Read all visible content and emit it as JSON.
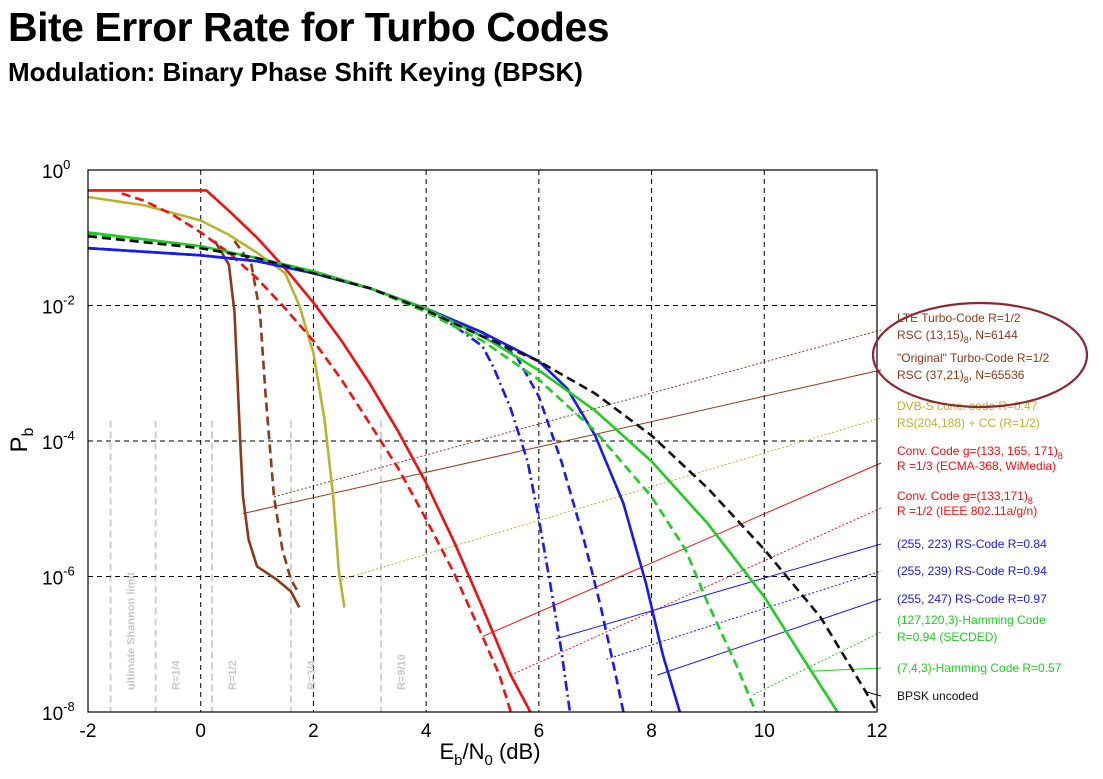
{
  "header": {
    "title": "Bite Error Rate for Turbo Codes",
    "subtitle": "Modulation: Binary Phase Shift Keying (BPSK)"
  },
  "chart_data": {
    "type": "line",
    "xlabel": "Eb/N0 (dB)",
    "ylabel": "Pb",
    "xlim": [
      -2,
      12
    ],
    "ylim": [
      1e-08,
      1
    ],
    "yscale": "log",
    "grid": true,
    "x_ticks": [
      "-2",
      "0",
      "2",
      "4",
      "6",
      "8",
      "10",
      "12"
    ],
    "y_ticks": [
      {
        "base": "10",
        "exp": "0",
        "value": 1
      },
      {
        "base": "10",
        "exp": "-2",
        "value": 0.01
      },
      {
        "base": "10",
        "exp": "-4",
        "value": 0.0001
      },
      {
        "base": "10",
        "exp": "-6",
        "value": 1e-06
      },
      {
        "base": "10",
        "exp": "-8",
        "value": 1e-08
      }
    ],
    "rate_limits": [
      {
        "label": "ultimate Shannon limit",
        "x": -1.6
      },
      {
        "label": "R=1/4",
        "x": -0.8
      },
      {
        "label": "R=1/2",
        "x": 0.2
      },
      {
        "label": "R=3/4",
        "x": 1.6
      },
      {
        "label": "R=9/10",
        "x": 3.2
      }
    ],
    "series": [
      {
        "name": "LTE Turbo-Code R=1/2 RSC (13,15)8, N=6144",
        "color": "#8b3a1a",
        "dash": "dashed",
        "points": [
          [
            0.6,
            0.09
          ],
          [
            0.9,
            0.04
          ],
          [
            1.05,
            0.008
          ],
          [
            1.15,
            0.0005
          ],
          [
            1.3,
            1.5e-05
          ],
          [
            1.45,
            2.5e-06
          ],
          [
            1.6,
            9e-07
          ],
          [
            1.75,
            5.5e-07
          ]
        ]
      },
      {
        "name": "\"Original\" Turbo-Code R=1/2 RSC (37,21)8, N=65536",
        "color": "#8b3a1a",
        "dash": "solid",
        "points": [
          [
            0.25,
            0.09
          ],
          [
            0.5,
            0.04
          ],
          [
            0.6,
            0.008
          ],
          [
            0.7,
            0.0001
          ],
          [
            0.75,
            1.5e-05
          ],
          [
            0.85,
            3.5e-06
          ],
          [
            1.0,
            1.4e-06
          ],
          [
            1.35,
            9e-07
          ],
          [
            1.6,
            6e-07
          ],
          [
            1.75,
            3.5e-07
          ]
        ]
      },
      {
        "name": "DVB-S conc. code R=0.47 RS(204,188) + CC (R=1/2)",
        "color": "#b9b430",
        "dash": "solid",
        "points": [
          [
            -2,
            0.4
          ],
          [
            -1,
            0.3
          ],
          [
            0,
            0.18
          ],
          [
            0.5,
            0.11
          ],
          [
            1,
            0.06
          ],
          [
            1.5,
            0.03
          ],
          [
            1.75,
            0.01
          ],
          [
            2,
            0.002
          ],
          [
            2.2,
            0.0002
          ],
          [
            2.35,
            1.5e-05
          ],
          [
            2.45,
            1.2e-06
          ],
          [
            2.55,
            3.5e-07
          ]
        ]
      },
      {
        "name": "Conv. Code g=(133, 165, 171)8 R =1/3 (ECMA-368, WiMedia)",
        "color": "#ee1111",
        "dash": "dashed",
        "points": [
          [
            -1.4,
            0.45
          ],
          [
            -1,
            0.35
          ],
          [
            -0.5,
            0.22
          ],
          [
            0,
            0.12
          ],
          [
            0.5,
            0.06
          ],
          [
            1,
            0.025
          ],
          [
            1.5,
            0.009
          ],
          [
            2,
            0.003
          ],
          [
            2.5,
            0.0008
          ],
          [
            3,
            0.00018
          ],
          [
            3.5,
            4e-05
          ],
          [
            4,
            7e-06
          ],
          [
            4.5,
            1.1e-06
          ],
          [
            5,
            1.3e-07
          ],
          [
            5.3,
            3.5e-08
          ],
          [
            5.5,
            1e-08
          ]
        ]
      },
      {
        "name": "Conv. Code g=(133,171)8 R =1/2 (IEEE 802.11a/g/n)",
        "color": "#ee1111",
        "dash": "solid",
        "points": [
          [
            -2,
            0.5
          ],
          [
            0.1,
            0.5
          ],
          [
            0.5,
            0.25
          ],
          [
            1,
            0.1
          ],
          [
            1.5,
            0.035
          ],
          [
            2,
            0.011
          ],
          [
            2.5,
            0.003
          ],
          [
            3,
            0.0007
          ],
          [
            3.5,
            0.00014
          ],
          [
            4,
            2.4e-05
          ],
          [
            4.5,
            3.2e-06
          ],
          [
            5,
            3.5e-07
          ],
          [
            5.5,
            3.5e-08
          ],
          [
            5.85,
            1e-08
          ]
        ]
      },
      {
        "name": "(255, 223) RS-Code R=0.84",
        "color": "#1a1aee",
        "dash": "dashdot",
        "points": [
          [
            -2,
            0.07
          ],
          [
            0,
            0.055
          ],
          [
            1,
            0.045
          ],
          [
            2,
            0.03
          ],
          [
            3,
            0.018
          ],
          [
            4,
            0.009
          ],
          [
            4.5,
            0.005
          ],
          [
            5,
            0.0025
          ],
          [
            5.2,
            0.0012
          ],
          [
            5.5,
            0.0003
          ],
          [
            5.8,
            5e-05
          ],
          [
            6,
            7e-06
          ],
          [
            6.2,
            8e-07
          ],
          [
            6.4,
            8e-08
          ],
          [
            6.55,
            1e-08
          ]
        ]
      },
      {
        "name": "(255, 239) RS-Code R=0.94",
        "color": "#1a1aee",
        "dash": "dashed",
        "points": [
          [
            -2,
            0.07
          ],
          [
            0,
            0.055
          ],
          [
            1,
            0.045
          ],
          [
            2,
            0.03
          ],
          [
            3,
            0.018
          ],
          [
            4,
            0.009
          ],
          [
            5,
            0.004
          ],
          [
            5.6,
            0.0018
          ],
          [
            6,
            0.00045
          ],
          [
            6.4,
            5e-05
          ],
          [
            6.8,
            3.5e-06
          ],
          [
            7.1,
            3.5e-07
          ],
          [
            7.35,
            4e-08
          ],
          [
            7.5,
            1e-08
          ]
        ]
      },
      {
        "name": "(255, 247) RS-Code R=0.97",
        "color": "#1a1aee",
        "dash": "solid",
        "points": [
          [
            -2,
            0.07
          ],
          [
            0,
            0.055
          ],
          [
            1,
            0.045
          ],
          [
            2,
            0.03
          ],
          [
            3,
            0.018
          ],
          [
            4,
            0.009
          ],
          [
            5,
            0.004
          ],
          [
            6,
            0.0015
          ],
          [
            6.5,
            0.0006
          ],
          [
            7,
            0.00012
          ],
          [
            7.5,
            1.2e-05
          ],
          [
            7.9,
            8e-07
          ],
          [
            8.2,
            7e-08
          ],
          [
            8.5,
            1e-08
          ]
        ]
      },
      {
        "name": "(127,120,3)-Hamming Code R=0.94 (SECDED)",
        "color": "#22cc22",
        "dash": "dashed",
        "points": [
          [
            -2,
            0.11
          ],
          [
            0,
            0.07
          ],
          [
            1,
            0.05
          ],
          [
            2,
            0.032
          ],
          [
            3,
            0.018
          ],
          [
            4,
            0.008
          ],
          [
            5,
            0.003
          ],
          [
            6,
            0.0008
          ],
          [
            7,
            0.00014
          ],
          [
            8,
            1.5e-05
          ],
          [
            8.6,
            2.5e-06
          ],
          [
            9,
            4e-07
          ],
          [
            9.5,
            5e-08
          ],
          [
            9.85,
            1e-08
          ]
        ]
      },
      {
        "name": "(7,4,3)-Hamming Code R=0.57",
        "color": "#22cc22",
        "dash": "solid",
        "points": [
          [
            -2,
            0.12
          ],
          [
            0,
            0.075
          ],
          [
            1,
            0.05
          ],
          [
            2,
            0.032
          ],
          [
            3,
            0.018
          ],
          [
            4,
            0.009
          ],
          [
            5,
            0.0035
          ],
          [
            6,
            0.0011
          ],
          [
            7,
            0.00028
          ],
          [
            8,
            5e-05
          ],
          [
            9,
            6e-06
          ],
          [
            10,
            5e-07
          ],
          [
            10.7,
            6e-08
          ],
          [
            11.3,
            1e-08
          ]
        ]
      },
      {
        "name": "BPSK uncoded",
        "color": "#111111",
        "dash": "dashed",
        "points": [
          [
            -2,
            0.105
          ],
          [
            0,
            0.07
          ],
          [
            1,
            0.05
          ],
          [
            2,
            0.03
          ],
          [
            3,
            0.018
          ],
          [
            4,
            0.0085
          ],
          [
            5,
            0.0035
          ],
          [
            6,
            0.0015
          ],
          [
            7,
            0.0005
          ],
          [
            8,
            0.00012
          ],
          [
            9,
            2e-05
          ],
          [
            10,
            2.5e-06
          ],
          [
            11,
            2.5e-07
          ],
          [
            11.8,
            2e-08
          ],
          [
            12,
            1e-08
          ]
        ]
      }
    ],
    "legend": [
      {
        "line1": "LTE Turbo-Code R=1/2",
        "line2": "RSC (13,15)",
        "sub": "8",
        "tail": ", N=6144",
        "color": "#8b3a1a",
        "target": [
          1.3,
          1.5e-05
        ]
      },
      {
        "line1": "\"Original\" Turbo-Code R=1/2",
        "line2": "RSC (37,21)",
        "sub": "8",
        "tail": ", N=65536",
        "color": "#8b3a1a",
        "target": [
          0.75,
          8.5e-06
        ]
      },
      {
        "line1": "DVB-S conc. code R=0.47",
        "line2": "RS(204,188) + CC (R=1/2)",
        "sub": "",
        "tail": "",
        "color": "#b9b430",
        "target": [
          2.5,
          9e-07
        ]
      },
      {
        "line1": "Conv. Code g=(133, 165, 171)",
        "sub1": "8",
        "line2": "R =1/3 (ECMA-368, WiMedia)",
        "sub": "",
        "tail": "",
        "color": "#ee1111",
        "target": [
          5,
          1.3e-07
        ]
      },
      {
        "line1": "Conv. Code g=(133,171)",
        "sub1": "8",
        "line2": "R =1/2 (IEEE 802.11a/g/n)",
        "sub": "",
        "tail": "",
        "color": "#ee1111",
        "target": [
          5.5,
          3.5e-08
        ]
      },
      {
        "line1": "(255, 223) RS-Code R=0.84",
        "line2": "",
        "sub": "",
        "tail": "",
        "color": "#1a1aee",
        "target": [
          6.3,
          1.2e-07
        ]
      },
      {
        "line1": "(255, 239) RS-Code R=0.94",
        "line2": "",
        "sub": "",
        "tail": "",
        "color": "#1a1aee",
        "target": [
          7.2,
          6e-08
        ]
      },
      {
        "line1": "(255, 247) RS-Code R=0.97",
        "line2": "",
        "sub": "",
        "tail": "",
        "color": "#1a1aee",
        "target": [
          8.1,
          3.5e-08
        ]
      },
      {
        "line1": "(127,120,3)-Hamming Code",
        "line2": "R=0.94 (SECDED)",
        "sub": "",
        "tail": "",
        "color": "#22cc22",
        "target": [
          9.8,
          1.8e-08
        ]
      },
      {
        "line1": "(7,4,3)-Hamming Code R=0.57",
        "line2": "",
        "sub": "",
        "tail": "",
        "color": "#22cc22",
        "target": [
          10.8,
          4e-08
        ]
      },
      {
        "line1": "BPSK uncoded",
        "line2": "",
        "sub": "",
        "tail": "",
        "color": "#111111",
        "target": [
          11.8,
          2e-08
        ]
      }
    ],
    "highlight": {
      "color": "#8b2a33",
      "shape": "ellipse",
      "encloses": "turbo-code legend entries"
    }
  }
}
